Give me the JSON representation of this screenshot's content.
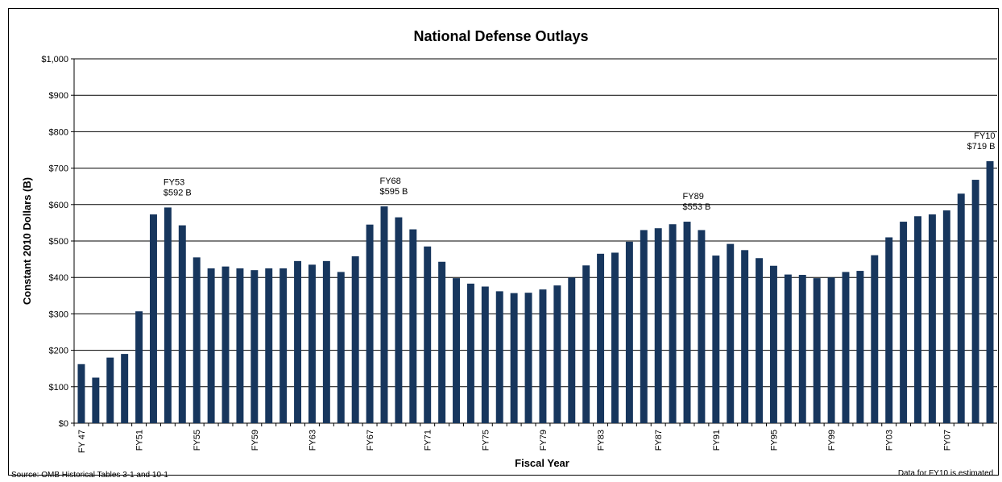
{
  "chart_data": {
    "type": "bar",
    "title": "National Defense Outlays",
    "xlabel": "Fiscal Year",
    "ylabel": "Constant 2010 Dollars (B)",
    "ylim": [
      0,
      1000
    ],
    "y_ticks": [
      "$0",
      "$100",
      "$200",
      "$300",
      "$400",
      "$500",
      "$600",
      "$700",
      "$800",
      "$900",
      "$1,000"
    ],
    "grid": true,
    "bar_color": "#17365d",
    "categories": [
      "FY47",
      "FY48",
      "FY49",
      "FY50",
      "FY51",
      "FY52",
      "FY53",
      "FY54",
      "FY55",
      "FY56",
      "FY57",
      "FY58",
      "FY59",
      "FY60",
      "FY61",
      "FY62",
      "FY63",
      "FY64",
      "FY65",
      "FY66",
      "FY67",
      "FY68",
      "FY69",
      "FY70",
      "FY71",
      "FY72",
      "FY73",
      "FY74",
      "FY75",
      "FY76",
      "FY77",
      "FY78",
      "FY79",
      "FY80",
      "FY81",
      "FY82",
      "FY83",
      "FY84",
      "FY85",
      "FY86",
      "FY87",
      "FY88",
      "FY89",
      "FY90",
      "FY91",
      "FY92",
      "FY93",
      "FY94",
      "FY95",
      "FY96",
      "FY97",
      "FY98",
      "FY99",
      "FY00",
      "FY01",
      "FY02",
      "FY03",
      "FY04",
      "FY05",
      "FY06",
      "FY07",
      "FY08",
      "FY09",
      "FY10"
    ],
    "x_tick_labels": [
      "FY 47",
      "",
      "",
      "",
      "FY51",
      "",
      "",
      "",
      "FY55",
      "",
      "",
      "",
      "FY59",
      "",
      "",
      "",
      "FY63",
      "",
      "",
      "",
      "FY67",
      "",
      "",
      "",
      "FY71",
      "",
      "",
      "",
      "FY75",
      "",
      "",
      "",
      "FY79",
      "",
      "",
      "",
      "FY83",
      "",
      "",
      "",
      "FY87",
      "",
      "",
      "",
      "FY91",
      "",
      "",
      "",
      "FY95",
      "",
      "",
      "",
      "FY99",
      "",
      "",
      "",
      "FY03",
      "",
      "",
      "",
      "FY07",
      "",
      "",
      ""
    ],
    "values": [
      162,
      125,
      180,
      190,
      307,
      573,
      592,
      543,
      455,
      425,
      430,
      425,
      420,
      425,
      425,
      445,
      435,
      445,
      415,
      458,
      545,
      595,
      565,
      532,
      485,
      443,
      398,
      383,
      375,
      362,
      357,
      358,
      367,
      378,
      400,
      433,
      465,
      468,
      498,
      530,
      535,
      546,
      553,
      530,
      460,
      492,
      475,
      453,
      432,
      408,
      407,
      398,
      400,
      415,
      418,
      461,
      510,
      553,
      568,
      573,
      584,
      630,
      668,
      719
    ],
    "annotations": [
      {
        "category": "FY53",
        "line1": "FY53",
        "line2": "$592 B"
      },
      {
        "category": "FY68",
        "line1": "FY68",
        "line2": "$595 B"
      },
      {
        "category": "FY89",
        "line1": "FY89",
        "line2": "$553 B"
      },
      {
        "category": "FY10",
        "line1": "FY10",
        "line2": "$719 B"
      }
    ]
  },
  "footer": {
    "source": "Source: OMB Historical Tables 3-1 and 10-1",
    "note": "Data for FY10 is estimated."
  }
}
